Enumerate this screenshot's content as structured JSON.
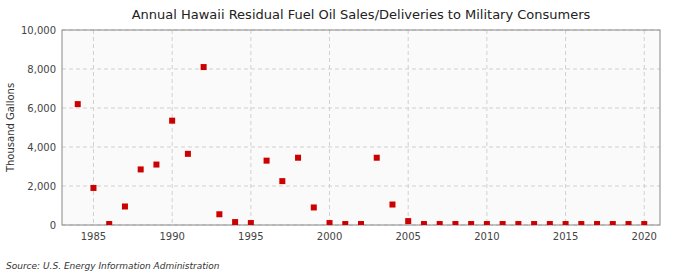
{
  "chart_data": {
    "type": "scatter",
    "title": "Annual Hawaii Residual Fuel Oil Sales/Deliveries to Military Consumers",
    "ylabel": "Thousand Gallons",
    "annotations": [
      "Source: U.S. Energy Information Administration"
    ],
    "x": [
      1984,
      1985,
      1986,
      1987,
      1988,
      1989,
      1990,
      1991,
      1992,
      1993,
      1994,
      1995,
      1996,
      1997,
      1998,
      1999,
      2000,
      2001,
      2002,
      2003,
      2004,
      2005,
      2006,
      2007,
      2008,
      2009,
      2010,
      2011,
      2012,
      2013,
      2014,
      2015,
      2016,
      2017,
      2018,
      2019,
      2020
    ],
    "values": [
      6200,
      1900,
      50,
      950,
      2850,
      3100,
      5350,
      3650,
      8100,
      550,
      150,
      100,
      3300,
      2250,
      3450,
      900,
      100,
      50,
      50,
      3450,
      1050,
      200,
      50,
      50,
      50,
      50,
      50,
      50,
      50,
      50,
      50,
      50,
      50,
      50,
      50,
      50,
      50
    ],
    "color": "#cc0000",
    "marker": "square",
    "xlim": [
      1983,
      2021
    ],
    "ylim": [
      0,
      10000
    ],
    "xticks": [
      1985,
      1990,
      1995,
      2000,
      2005,
      2010,
      2015,
      2020
    ],
    "yticks": [
      0,
      {
        "value": 2000,
        "label": "2,000"
      },
      {
        "value": 4000,
        "label": "4,000"
      },
      {
        "value": 6000,
        "label": "6,000"
      },
      {
        "value": 8000,
        "label": "8,000"
      },
      {
        "value": 10000,
        "label": "10,000"
      }
    ],
    "grid": true
  }
}
